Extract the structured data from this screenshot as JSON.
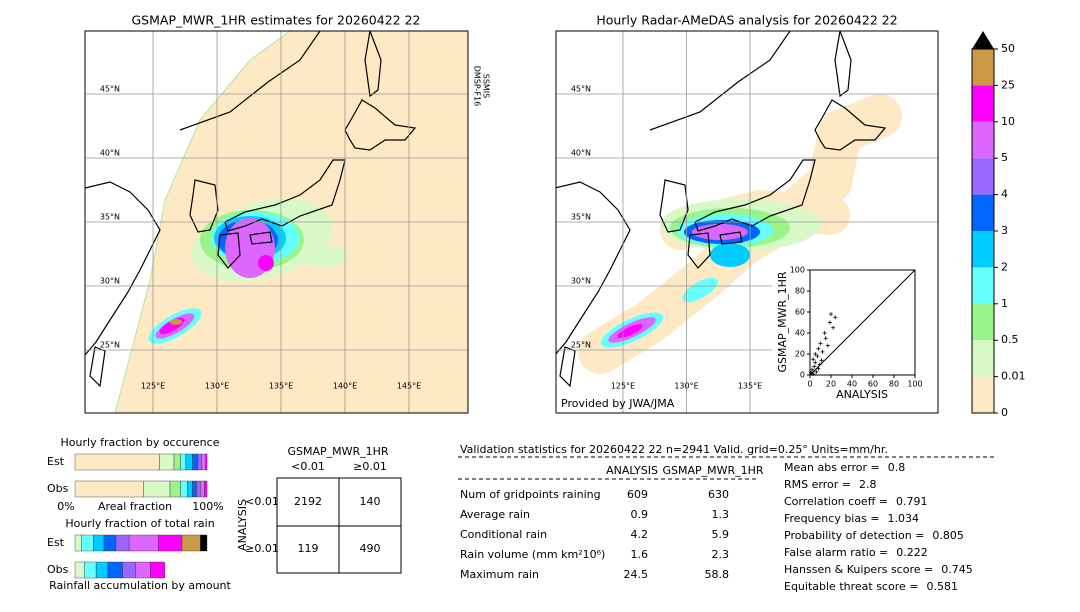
{
  "left_map": {
    "title": "GSMAP_MWR_1HR estimates for 20260422 22",
    "sensor_label": [
      "DMSP-F16",
      "SSMIS"
    ],
    "lat_labels": [
      "45°N",
      "40°N",
      "35°N",
      "30°N",
      "25°N"
    ],
    "lon_labels": [
      "125°E",
      "130°E",
      "135°E",
      "140°E",
      "145°E"
    ]
  },
  "right_map": {
    "title": "Hourly Radar-AMeDAS analysis for 20260422 22",
    "lat_labels": [
      "45°N",
      "40°N",
      "35°N",
      "30°N",
      "25°N"
    ],
    "lon_labels": [
      "125°E",
      "130°E",
      "135°E"
    ],
    "credit": "Provided by JWA/JMA"
  },
  "scatter": {
    "xlabel": "ANALYSIS",
    "ylabel": "GSMAP_MWR_1HR",
    "xlim": [
      0,
      100
    ],
    "ylim": [
      0,
      100
    ],
    "xticks": [
      0,
      20,
      40,
      60,
      80,
      100
    ],
    "yticks": [
      0,
      20,
      40,
      60,
      80,
      100
    ],
    "x": [
      1,
      2,
      3,
      4,
      5,
      6,
      7,
      8,
      9,
      10,
      12,
      14,
      15,
      17,
      19,
      20,
      22,
      3,
      5,
      8,
      11,
      24
    ],
    "y": [
      2,
      5,
      1,
      8,
      12,
      3,
      18,
      25,
      10,
      30,
      22,
      40,
      35,
      28,
      50,
      58,
      45,
      15,
      20,
      6,
      14,
      55
    ]
  },
  "colorbar": {
    "ticks": [
      0,
      0.01,
      0.5,
      1,
      2,
      3,
      4,
      5,
      10,
      25,
      50
    ],
    "colors": [
      "#fde9c4",
      "#d8f8c8",
      "#99f58a",
      "#66ffff",
      "#00ccff",
      "#0066ff",
      "#9966ff",
      "#dd66ff",
      "#ff00ff",
      "#cc9944"
    ],
    "extend_color": "#000000"
  },
  "fraction_colors": [
    "#fde9c4",
    "#d8f8c8",
    "#99f58a",
    "#66ffff",
    "#00ccff",
    "#0066ff",
    "#9966ff",
    "#dd66ff",
    "#ff00ff",
    "#cc9944",
    "#000000"
  ],
  "occurrence": {
    "title": "Hourly fraction by occurence",
    "rows": [
      {
        "label": "Est",
        "values": [
          64,
          11,
          5,
          4,
          5,
          4,
          3,
          3,
          1,
          0,
          0
        ]
      },
      {
        "label": "Obs",
        "values": [
          52,
          20,
          8,
          5,
          4,
          3,
          3,
          3,
          2,
          0,
          0
        ]
      }
    ],
    "axis_left": "0%",
    "axis_label": "Areal fraction",
    "axis_right": "100%"
  },
  "total_rain": {
    "title": "Hourly fraction of total rain",
    "rows": [
      {
        "label": "Est",
        "values": [
          0,
          5,
          0,
          9,
          8,
          9,
          10,
          22,
          18,
          14,
          5
        ]
      },
      {
        "label": "Obs",
        "values": [
          0,
          7,
          0,
          9,
          9,
          11,
          10,
          11,
          11,
          0,
          0
        ]
      }
    ],
    "footer": "Rainfall accumulation by amount"
  },
  "contingency": {
    "title": "GSMAP_MWR_1HR",
    "col_labels": [
      "<0.01",
      "≥0.01"
    ],
    "row_axis": "ANALYSIS",
    "row_labels": [
      "<0.01",
      "≥0.01"
    ],
    "cells": [
      [
        2192,
        140
      ],
      [
        119,
        490
      ]
    ]
  },
  "validation": {
    "header": "Validation statistics for 20260422 22  n=2941 Valid. grid=0.25° Units=mm/hr.",
    "columns": [
      "ANALYSIS",
      "GSMAP_MWR_1HR"
    ],
    "rows": [
      {
        "label": "Num of gridpoints raining",
        "values": [
          609,
          630
        ]
      },
      {
        "label": "Average rain",
        "values": [
          0.9,
          1.3
        ]
      },
      {
        "label": "Conditional rain",
        "values": [
          4.2,
          5.9
        ]
      },
      {
        "label": "Rain volume (mm km²10⁶)",
        "values": [
          1.6,
          2.3
        ]
      },
      {
        "label": "Maximum rain",
        "values": [
          24.5,
          58.8
        ]
      }
    ],
    "scores": [
      {
        "label": "Mean abs error =",
        "value": 0.8
      },
      {
        "label": "RMS error =",
        "value": 2.8
      },
      {
        "label": "Correlation coeff =",
        "value": 0.791
      },
      {
        "label": "Frequency bias =",
        "value": 1.034
      },
      {
        "label": "Probability of detection =",
        "value": 0.805
      },
      {
        "label": "False alarm ratio =",
        "value": 0.222
      },
      {
        "label": "Hanssen & Kuipers score =",
        "value": 0.745
      },
      {
        "label": "Equitable threat score =",
        "value": 0.581
      }
    ]
  }
}
